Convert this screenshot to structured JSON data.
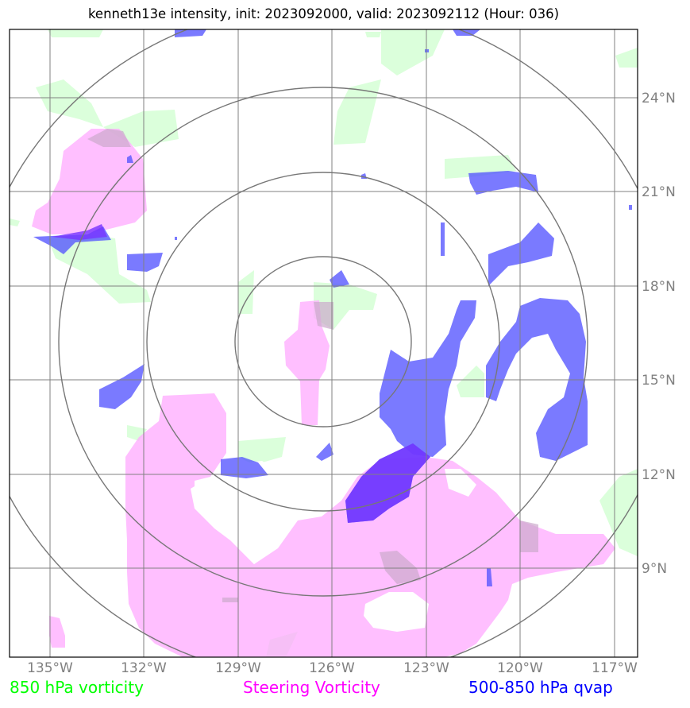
{
  "title": "kenneth13e intensity, init: 2023092000, valid: 2023092112 (Hour: 036)",
  "x_ticks": [
    "135°W",
    "132°W",
    "129°W",
    "126°W",
    "123°W",
    "120°W",
    "117°W"
  ],
  "y_ticks": [
    "24°N",
    "21°N",
    "18°N",
    "15°N",
    "12°N",
    "9°N"
  ],
  "legend": {
    "vorticity_850": "850 hPa vorticity",
    "steering": "Steering Vorticity",
    "qvap": "500-850 hPa qvap"
  },
  "colors": {
    "vorticity_850": "#00ff00",
    "steering": "#ff00ff",
    "qvap": "#0000ff",
    "grid": "#808080"
  },
  "map_extent": {
    "lon": [
      -136.3,
      -116.3
    ],
    "lat": [
      6.3,
      26.3
    ]
  },
  "range_rings_deg": [
    2.8,
    5.5,
    8.2,
    10.9
  ],
  "storm_center": {
    "lon": -126.3,
    "lat": 16.2
  }
}
